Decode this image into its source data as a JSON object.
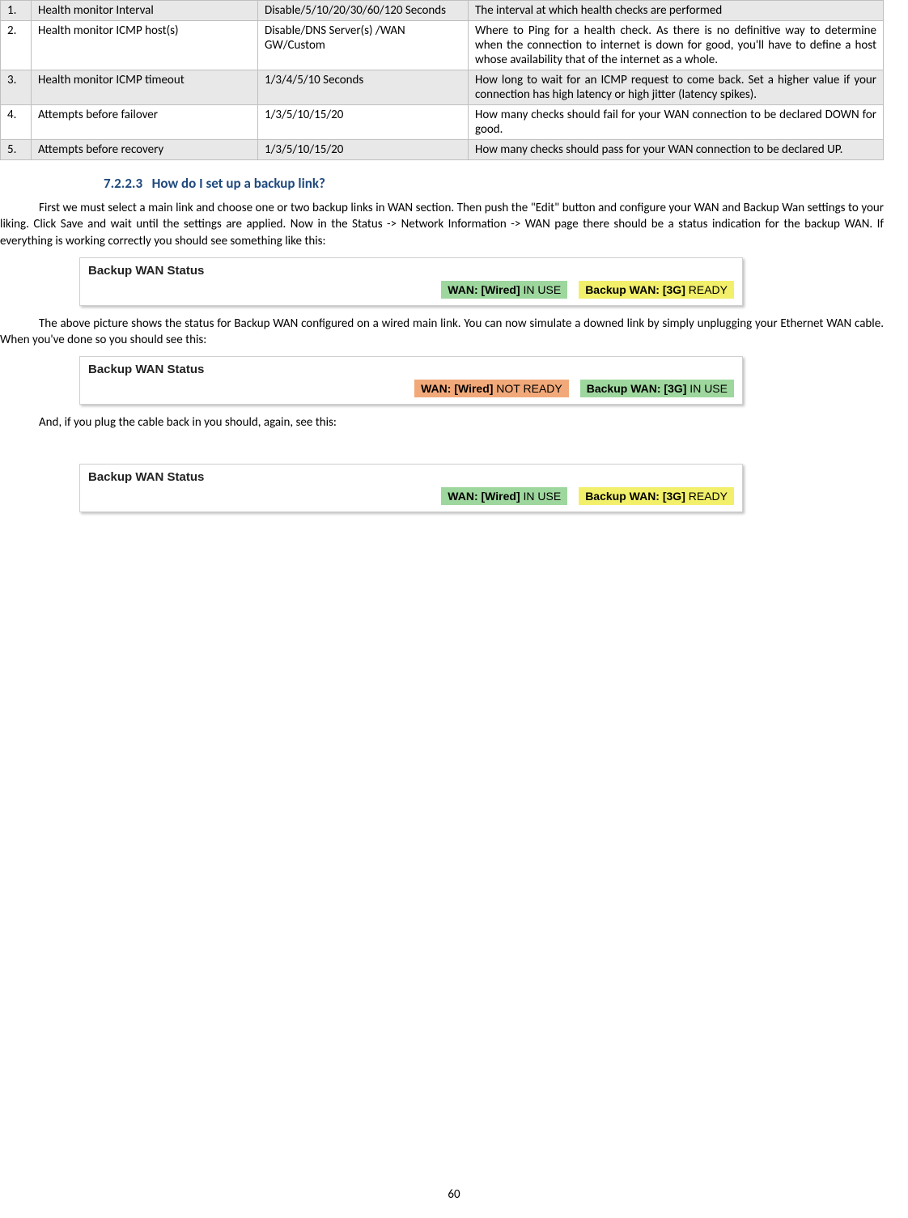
{
  "table": {
    "rows": [
      {
        "n": "1.",
        "name": "Health monitor Interval",
        "opts": "Disable/5/10/20/30/60/120 Seconds",
        "desc": "The interval at which health checks are performed"
      },
      {
        "n": "2.",
        "name": "Health monitor ICMP host(s)",
        "opts": "Disable/DNS Server(s) /WAN GW/Custom",
        "desc": "Where to Ping for a health check. As there is no definitive way to determine when the connection to internet is down for good, you'll have to define a host whose availability that of the internet as a whole."
      },
      {
        "n": "3.",
        "name": "Health monitor ICMP timeout",
        "opts": "1/3/4/5/10 Seconds",
        "desc": "How long to wait for an ICMP request to come back. Set a higher value if your connection has high latency or high jitter (latency spikes)."
      },
      {
        "n": "4.",
        "name": "Attempts before failover",
        "opts": "1/3/5/10/15/20",
        "desc": "How many checks should fail for your WAN connection to be declared DOWN for good."
      },
      {
        "n": "5.",
        "name": "Attempts before recovery",
        "opts": "1/3/5/10/15/20",
        "desc": "How many checks should pass for your WAN connection to be declared UP."
      }
    ]
  },
  "heading": {
    "num": "7.2.2.3",
    "title": "How do I set up a backup link?"
  },
  "para1": "First we must select a main link and choose one or two backup links in WAN section. Then push the \"Edit\" button and configure your WAN and Backup Wan settings to your liking. Click Save and wait until the settings are applied. Now in the Status -> Network Information -> WAN page there should be a status indication for the backup WAN. If everything is working correctly you should see something like this:",
  "para2": "The above picture shows the status for Backup WAN configured on a wired main link. You can now simulate a downed link by simply unplugging your Ethernet WAN cable. When you've done so you should see this:",
  "para3": "And, if you plug the cable back in you should, again, see this:",
  "status_title": "Backup WAN Status",
  "badges": {
    "wan_wired": "WAN: [Wired]",
    "backup_3g": "Backup WAN: [3G]",
    "in_use": " IN USE",
    "ready": " READY",
    "not_ready": " NOT READY"
  },
  "page_number": "60"
}
